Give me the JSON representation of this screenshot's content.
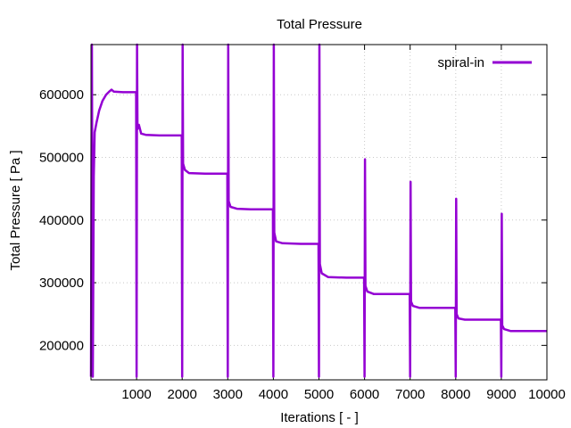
{
  "chart_data": {
    "type": "line",
    "title": "Total Pressure",
    "xlabel": "Iterations [ - ]",
    "ylabel": "Total Pressure [ Pa ]",
    "xlim": [
      0,
      10000
    ],
    "ylim": [
      145000,
      680000
    ],
    "x_ticks": [
      1000,
      2000,
      3000,
      4000,
      5000,
      6000,
      7000,
      8000,
      9000,
      10000
    ],
    "x_tick_labels": [
      "1000",
      "2000",
      "3000",
      "4000",
      "5000",
      "6000",
      "7000",
      "8000",
      "9000",
      "10000"
    ],
    "y_ticks": [
      200000,
      300000,
      400000,
      500000,
      600000
    ],
    "y_tick_labels": [
      "200000",
      "300000",
      "400000",
      "500000",
      "600000"
    ],
    "grid": true,
    "legend_position": "top-right",
    "series": [
      {
        "name": "spiral-in",
        "color": "#9400d3",
        "points": [
          [
            0,
            150000
          ],
          [
            20,
            680000
          ],
          [
            40,
            150000
          ],
          [
            60,
            470000
          ],
          [
            80,
            540000
          ],
          [
            120,
            555000
          ],
          [
            180,
            575000
          ],
          [
            250,
            590000
          ],
          [
            330,
            600000
          ],
          [
            400,
            605000
          ],
          [
            450,
            608000
          ],
          [
            500,
            605000
          ],
          [
            700,
            604000
          ],
          [
            990,
            604000
          ],
          [
            1000,
            150000
          ],
          [
            1010,
            680000
          ],
          [
            1020,
            545000
          ],
          [
            1050,
            552000
          ],
          [
            1100,
            538000
          ],
          [
            1200,
            536000
          ],
          [
            1500,
            535000
          ],
          [
            1990,
            535000
          ],
          [
            2000,
            150000
          ],
          [
            2010,
            680000
          ],
          [
            2020,
            490000
          ],
          [
            2060,
            480000
          ],
          [
            2150,
            475000
          ],
          [
            2500,
            474000
          ],
          [
            2990,
            474000
          ],
          [
            3000,
            150000
          ],
          [
            3010,
            680000
          ],
          [
            3020,
            430000
          ],
          [
            3060,
            421000
          ],
          [
            3200,
            418000
          ],
          [
            3500,
            417000
          ],
          [
            3990,
            417000
          ],
          [
            4000,
            150000
          ],
          [
            4010,
            680000
          ],
          [
            4020,
            380000
          ],
          [
            4060,
            366000
          ],
          [
            4200,
            363000
          ],
          [
            4600,
            362000
          ],
          [
            4990,
            362000
          ],
          [
            5000,
            150000
          ],
          [
            5010,
            680000
          ],
          [
            5020,
            330000
          ],
          [
            5060,
            315000
          ],
          [
            5200,
            309000
          ],
          [
            5600,
            308000
          ],
          [
            5990,
            308000
          ],
          [
            6000,
            150000
          ],
          [
            6010,
            497000
          ],
          [
            6020,
            295000
          ],
          [
            6060,
            286000
          ],
          [
            6200,
            282000
          ],
          [
            6990,
            282000
          ],
          [
            7000,
            150000
          ],
          [
            7010,
            461000
          ],
          [
            7020,
            270000
          ],
          [
            7060,
            263000
          ],
          [
            7200,
            260000
          ],
          [
            7990,
            260000
          ],
          [
            8000,
            150000
          ],
          [
            8010,
            434000
          ],
          [
            8020,
            250000
          ],
          [
            8060,
            243000
          ],
          [
            8200,
            241000
          ],
          [
            8990,
            241000
          ],
          [
            9000,
            150000
          ],
          [
            9010,
            410000
          ],
          [
            9020,
            232000
          ],
          [
            9060,
            226000
          ],
          [
            9200,
            223000
          ],
          [
            10000,
            223000
          ]
        ]
      }
    ]
  }
}
